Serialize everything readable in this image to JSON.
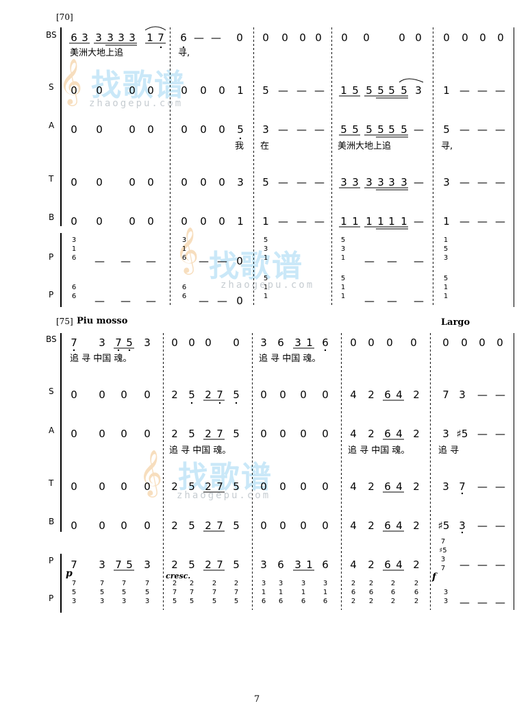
{
  "page_number": "7",
  "watermark": {
    "logo_text": "找歌谱",
    "url_text": "zhaogepu.com",
    "clef_glyph": "𝄞"
  },
  "system1": {
    "measure_number": "[70]",
    "voices": [
      "BS",
      "S",
      "A",
      "T",
      "B",
      "P",
      "P"
    ],
    "bs_notes": [
      "6",
      "3",
      "3",
      "3",
      "3",
      "3",
      "1",
      "7",
      "6",
      "—",
      "—",
      "0",
      "0",
      "0",
      "0",
      "0",
      "0",
      "0",
      "0",
      "0",
      "0",
      "0",
      "0",
      "0"
    ],
    "bs_lyrics": [
      "美洲大地上追",
      "寻,"
    ],
    "s_notes": [
      "0",
      "0",
      "0",
      "0",
      "0",
      "0",
      "0",
      "1",
      "5",
      "—",
      "—",
      "—",
      "1",
      "5",
      "5",
      "5",
      "5",
      "5",
      "3",
      "1",
      "—",
      "—",
      "—"
    ],
    "a_notes": [
      "0",
      "0",
      "0",
      "0",
      "0",
      "0",
      "0",
      "5",
      "3",
      "—",
      "—",
      "—",
      "5",
      "5",
      "5",
      "5",
      "5",
      "5",
      "—",
      "5",
      "—",
      "—",
      "—"
    ],
    "a_lyrics": [
      "我",
      "在",
      "美洲大地上追",
      "寻,"
    ],
    "t_notes": [
      "0",
      "0",
      "0",
      "0",
      "0",
      "0",
      "0",
      "3",
      "5",
      "—",
      "—",
      "—",
      "3",
      "3",
      "3",
      "3",
      "3",
      "3",
      "—",
      "3",
      "—",
      "—",
      "—"
    ],
    "b_notes": [
      "0",
      "0",
      "0",
      "0",
      "0",
      "0",
      "0",
      "1",
      "1",
      "—",
      "—",
      "—",
      "1",
      "1",
      "1",
      "1",
      "1",
      "1",
      "—",
      "1",
      "—",
      "—",
      "—"
    ],
    "p1_dashes": [
      "—",
      "—",
      "—",
      "—",
      "—",
      "0",
      "—",
      "—",
      "—"
    ],
    "p2_dashes": [
      "—",
      "—",
      "—",
      "—",
      "—",
      "0",
      "—",
      "—",
      "—"
    ]
  },
  "system2": {
    "measure_number": "[75]",
    "tempo_left": "Piu mosso",
    "tempo_right": "Largo",
    "voices": [
      "BS",
      "S",
      "A",
      "T",
      "B",
      "P",
      "P"
    ],
    "bs_notes": [
      "7",
      "3",
      "7",
      "5",
      "3",
      "0",
      "0",
      "0",
      "0",
      "3",
      "6",
      "3",
      "1",
      "6",
      "0",
      "0",
      "0",
      "0",
      "0",
      "0",
      "0",
      "0"
    ],
    "bs_lyrics": [
      "追 寻 中国 魂。",
      "追 寻 中国 魂。"
    ],
    "s_notes": [
      "0",
      "0",
      "0",
      "0",
      "2",
      "5",
      "2",
      "7",
      "5",
      "0",
      "0",
      "0",
      "0",
      "4",
      "2",
      "6",
      "4",
      "2",
      "7",
      "3",
      "—",
      "—"
    ],
    "a_notes": [
      "0",
      "0",
      "0",
      "0",
      "2",
      "5",
      "2",
      "7",
      "5",
      "0",
      "0",
      "0",
      "0",
      "4",
      "2",
      "6",
      "4",
      "2",
      "3",
      "♯5",
      "—",
      "—"
    ],
    "a_lyrics": [
      "追 寻 中国 魂。",
      "追 寻 中国 魂。",
      "追 寻"
    ],
    "t_notes": [
      "0",
      "0",
      "0",
      "0",
      "2",
      "5",
      "2",
      "7",
      "5",
      "0",
      "0",
      "0",
      "0",
      "4",
      "2",
      "6",
      "4",
      "2",
      "3",
      "7",
      "—",
      "—"
    ],
    "b_notes": [
      "0",
      "0",
      "0",
      "0",
      "2",
      "5",
      "2",
      "7",
      "5",
      "0",
      "0",
      "0",
      "0",
      "4",
      "2",
      "6",
      "4",
      "2",
      "♯5",
      "3",
      "—",
      "—"
    ],
    "p1_notes": [
      "7",
      "3",
      "7",
      "5",
      "3",
      "2",
      "5",
      "2",
      "7",
      "5",
      "3",
      "6",
      "3",
      "1",
      "6",
      "4",
      "2",
      "6",
      "4",
      "2"
    ],
    "p1_dashes": [
      "—",
      "—",
      "—"
    ],
    "p2_dashes": [
      "—",
      "—",
      "—"
    ],
    "dynamics": {
      "p": "p",
      "cresc": "cresc.",
      "f": "f"
    }
  }
}
